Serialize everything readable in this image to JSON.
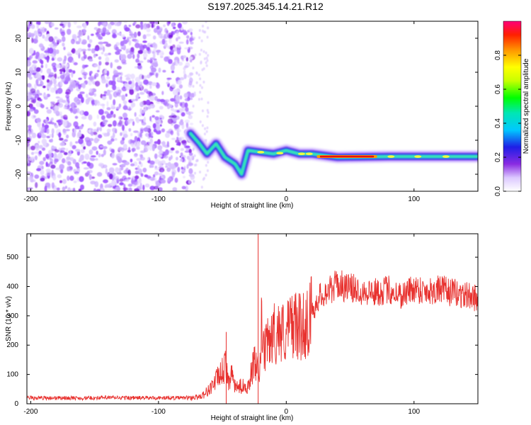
{
  "title": "S197.2025.345.14.21.R12",
  "chart_data": [
    {
      "type": "heatmap",
      "title": "",
      "xlabel": "Height of straight line (km)",
      "ylabel": "Frequency (Hz)",
      "xlim": [
        -203,
        150
      ],
      "ylim": [
        -25,
        25
      ],
      "xticks": [
        -200,
        -100,
        0,
        100
      ],
      "yticks": [
        -20,
        -10,
        0,
        10,
        20
      ],
      "colorbar": {
        "label": "Normalized spectral amplitude",
        "range": [
          0,
          1
        ],
        "ticks": [
          "0.0",
          "0.2",
          "0.4",
          "0.6",
          "0.8"
        ]
      },
      "features": {
        "noise_region_x": [
          -203,
          -73
        ],
        "frequency_ridge": [
          {
            "x": -75,
            "y": -8
          },
          {
            "x": -68,
            "y": -11
          },
          {
            "x": -62,
            "y": -14
          },
          {
            "x": -55,
            "y": -11
          },
          {
            "x": -48,
            "y": -15
          },
          {
            "x": -40,
            "y": -17
          },
          {
            "x": -35,
            "y": -20
          },
          {
            "x": -30,
            "y": -13
          },
          {
            "x": -20,
            "y": -13.5
          },
          {
            "x": -10,
            "y": -14
          },
          {
            "x": 0,
            "y": -13
          },
          {
            "x": 10,
            "y": -14
          },
          {
            "x": 20,
            "y": -14
          },
          {
            "x": 40,
            "y": -15
          },
          {
            "x": 80,
            "y": -14.8
          },
          {
            "x": 120,
            "y": -14.8
          },
          {
            "x": 150,
            "y": -14.8
          }
        ],
        "peak_amplitude_x": [
          25,
          70
        ]
      }
    },
    {
      "type": "line",
      "title": "",
      "xlabel": "Height of straight line (km)",
      "ylabel": "SNR (10 * v/v)",
      "xlim": [
        -203,
        150
      ],
      "ylim": [
        0,
        580
      ],
      "xticks": [
        -200,
        -100,
        0,
        100
      ],
      "yticks": [
        0,
        100,
        200,
        300,
        400,
        500
      ],
      "color": "#e8322f",
      "series": [
        {
          "name": "SNR",
          "x": [
            -203,
            -180,
            -160,
            -140,
            -120,
            -100,
            -80,
            -70,
            -65,
            -60,
            -55,
            -50,
            -47,
            -45,
            -42,
            -40,
            -35,
            -30,
            -25,
            -22,
            -21,
            -20,
            -19,
            -18,
            -15,
            -10,
            -5,
            0,
            5,
            10,
            15,
            20,
            25,
            30,
            35,
            40,
            45,
            50,
            60,
            70,
            80,
            90,
            100,
            110,
            120,
            130,
            140,
            150
          ],
          "y": [
            20,
            20,
            19,
            21,
            20,
            20,
            20,
            22,
            30,
            50,
            80,
            110,
            130,
            75,
            100,
            55,
            60,
            60,
            140,
            110,
            80,
            200,
            300,
            170,
            200,
            240,
            250,
            240,
            280,
            260,
            270,
            310,
            360,
            380,
            390,
            410,
            400,
            395,
            385,
            380,
            390,
            370,
            395,
            385,
            390,
            380,
            370,
            360
          ]
        }
      ],
      "spikes": [
        {
          "x": -47,
          "y": 245
        },
        {
          "x": -22,
          "y": 580
        }
      ]
    }
  ]
}
